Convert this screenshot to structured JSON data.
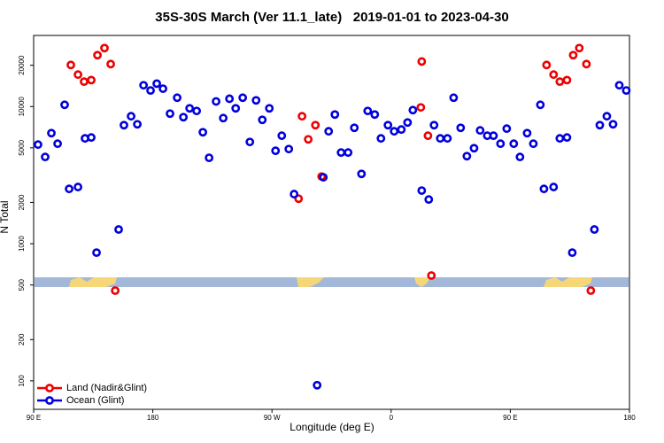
{
  "chart_data": {
    "type": "scatter",
    "title": "35S-30S March (Ver 11.1_late)   2019-01-01 to 2023-04-30",
    "xlabel": "Longitude (deg E)",
    "ylabel": "N Total",
    "xlim": [
      90,
      540
    ],
    "ylim": [
      62,
      33000
    ],
    "ylog": true,
    "xticks": [
      {
        "value": 90,
        "label": "90 E"
      },
      180,
      {
        "value": 270,
        "label": "90 W"
      },
      {
        "value": 360,
        "label": "0"
      },
      {
        "value": 450,
        "label": "90 E"
      },
      {
        "value": 540,
        "label": "180"
      }
    ],
    "yticks": [
      100,
      200,
      500,
      1000,
      2000,
      5000,
      10000,
      20000
    ],
    "legend": "lower left",
    "series": [
      {
        "name": "Land (Nadir&Glint)",
        "color": "#ee0000",
        "x": [
          118.1,
          123.5,
          128.1,
          133.5,
          138.2,
          143.5,
          148.2,
          151.6,
          292.7,
          297.4,
          302.8,
          307.5,
          290.1,
          382.4,
          383.1,
          387.8,
          390.4,
          477.4,
          482.7,
          487.4,
          492.8,
          497.5,
          502.1,
          507.5,
          510.8
        ],
        "values": [
          20100,
          17100,
          15200,
          15600,
          23700,
          26700,
          20400,
          455,
          8500,
          5770,
          7320,
          3090,
          2130,
          9860,
          21300,
          6130,
          586,
          20100,
          17100,
          15200,
          15600,
          23700,
          26700,
          20400,
          455
        ]
      },
      {
        "name": "Ocean (Glint)",
        "color": "#0000dd",
        "x": [
          93.3,
          98.7,
          103.4,
          108.1,
          113.4,
          116.8,
          123.5,
          128.8,
          133.5,
          137.5,
          154.2,
          158.2,
          163.6,
          168.3,
          173.0,
          178.3,
          183.0,
          187.7,
          193.0,
          198.4,
          203.1,
          207.8,
          213.1,
          217.8,
          222.5,
          227.8,
          233.2,
          237.9,
          242.6,
          247.9,
          253.3,
          258.0,
          262.7,
          268.0,
          272.7,
          277.4,
          282.7,
          286.7,
          304.1,
          308.8,
          312.8,
          317.5,
          322.2,
          327.5,
          332.2,
          337.6,
          342.3,
          347.6,
          352.3,
          357.6,
          362.3,
          367.7,
          372.4,
          376.4,
          383.1,
          388.4,
          392.4,
          397.1,
          402.5,
          407.2,
          412.5,
          417.2,
          422.6,
          427.2,
          432.6,
          437.3,
          442.6,
          447.3,
          452.6,
          457.3,
          462.7,
          467.4,
          472.7,
          475.4,
          482.7,
          487.4,
          492.8,
          496.8,
          513.5,
          517.6,
          522.9,
          527.6,
          532.3,
          537.6
        ],
        "values": [
          5280,
          4290,
          6400,
          5360,
          10300,
          2510,
          2590,
          5860,
          5950,
          861,
          1270,
          7320,
          8500,
          7430,
          14300,
          13100,
          14700,
          13500,
          8880,
          11600,
          8370,
          9710,
          9290,
          6500,
          4230,
          10900,
          8240,
          11400,
          9710,
          11600,
          5520,
          11100,
          8000,
          9710,
          4760,
          6130,
          4900,
          2300,
          93,
          3050,
          6600,
          8750,
          4620,
          4620,
          7000,
          3230,
          9290,
          8750,
          5860,
          7320,
          6600,
          6800,
          7650,
          9420,
          2440,
          2100,
          7320,
          5860,
          5860,
          11600,
          7000,
          4350,
          4970,
          6700,
          6130,
          6130,
          5360,
          6900,
          5360,
          4290,
          6400,
          5360,
          10300,
          2510,
          2590,
          5860,
          5950,
          861,
          1270,
          7320,
          8500,
          7430,
          14300,
          13100
        ]
      }
    ]
  }
}
